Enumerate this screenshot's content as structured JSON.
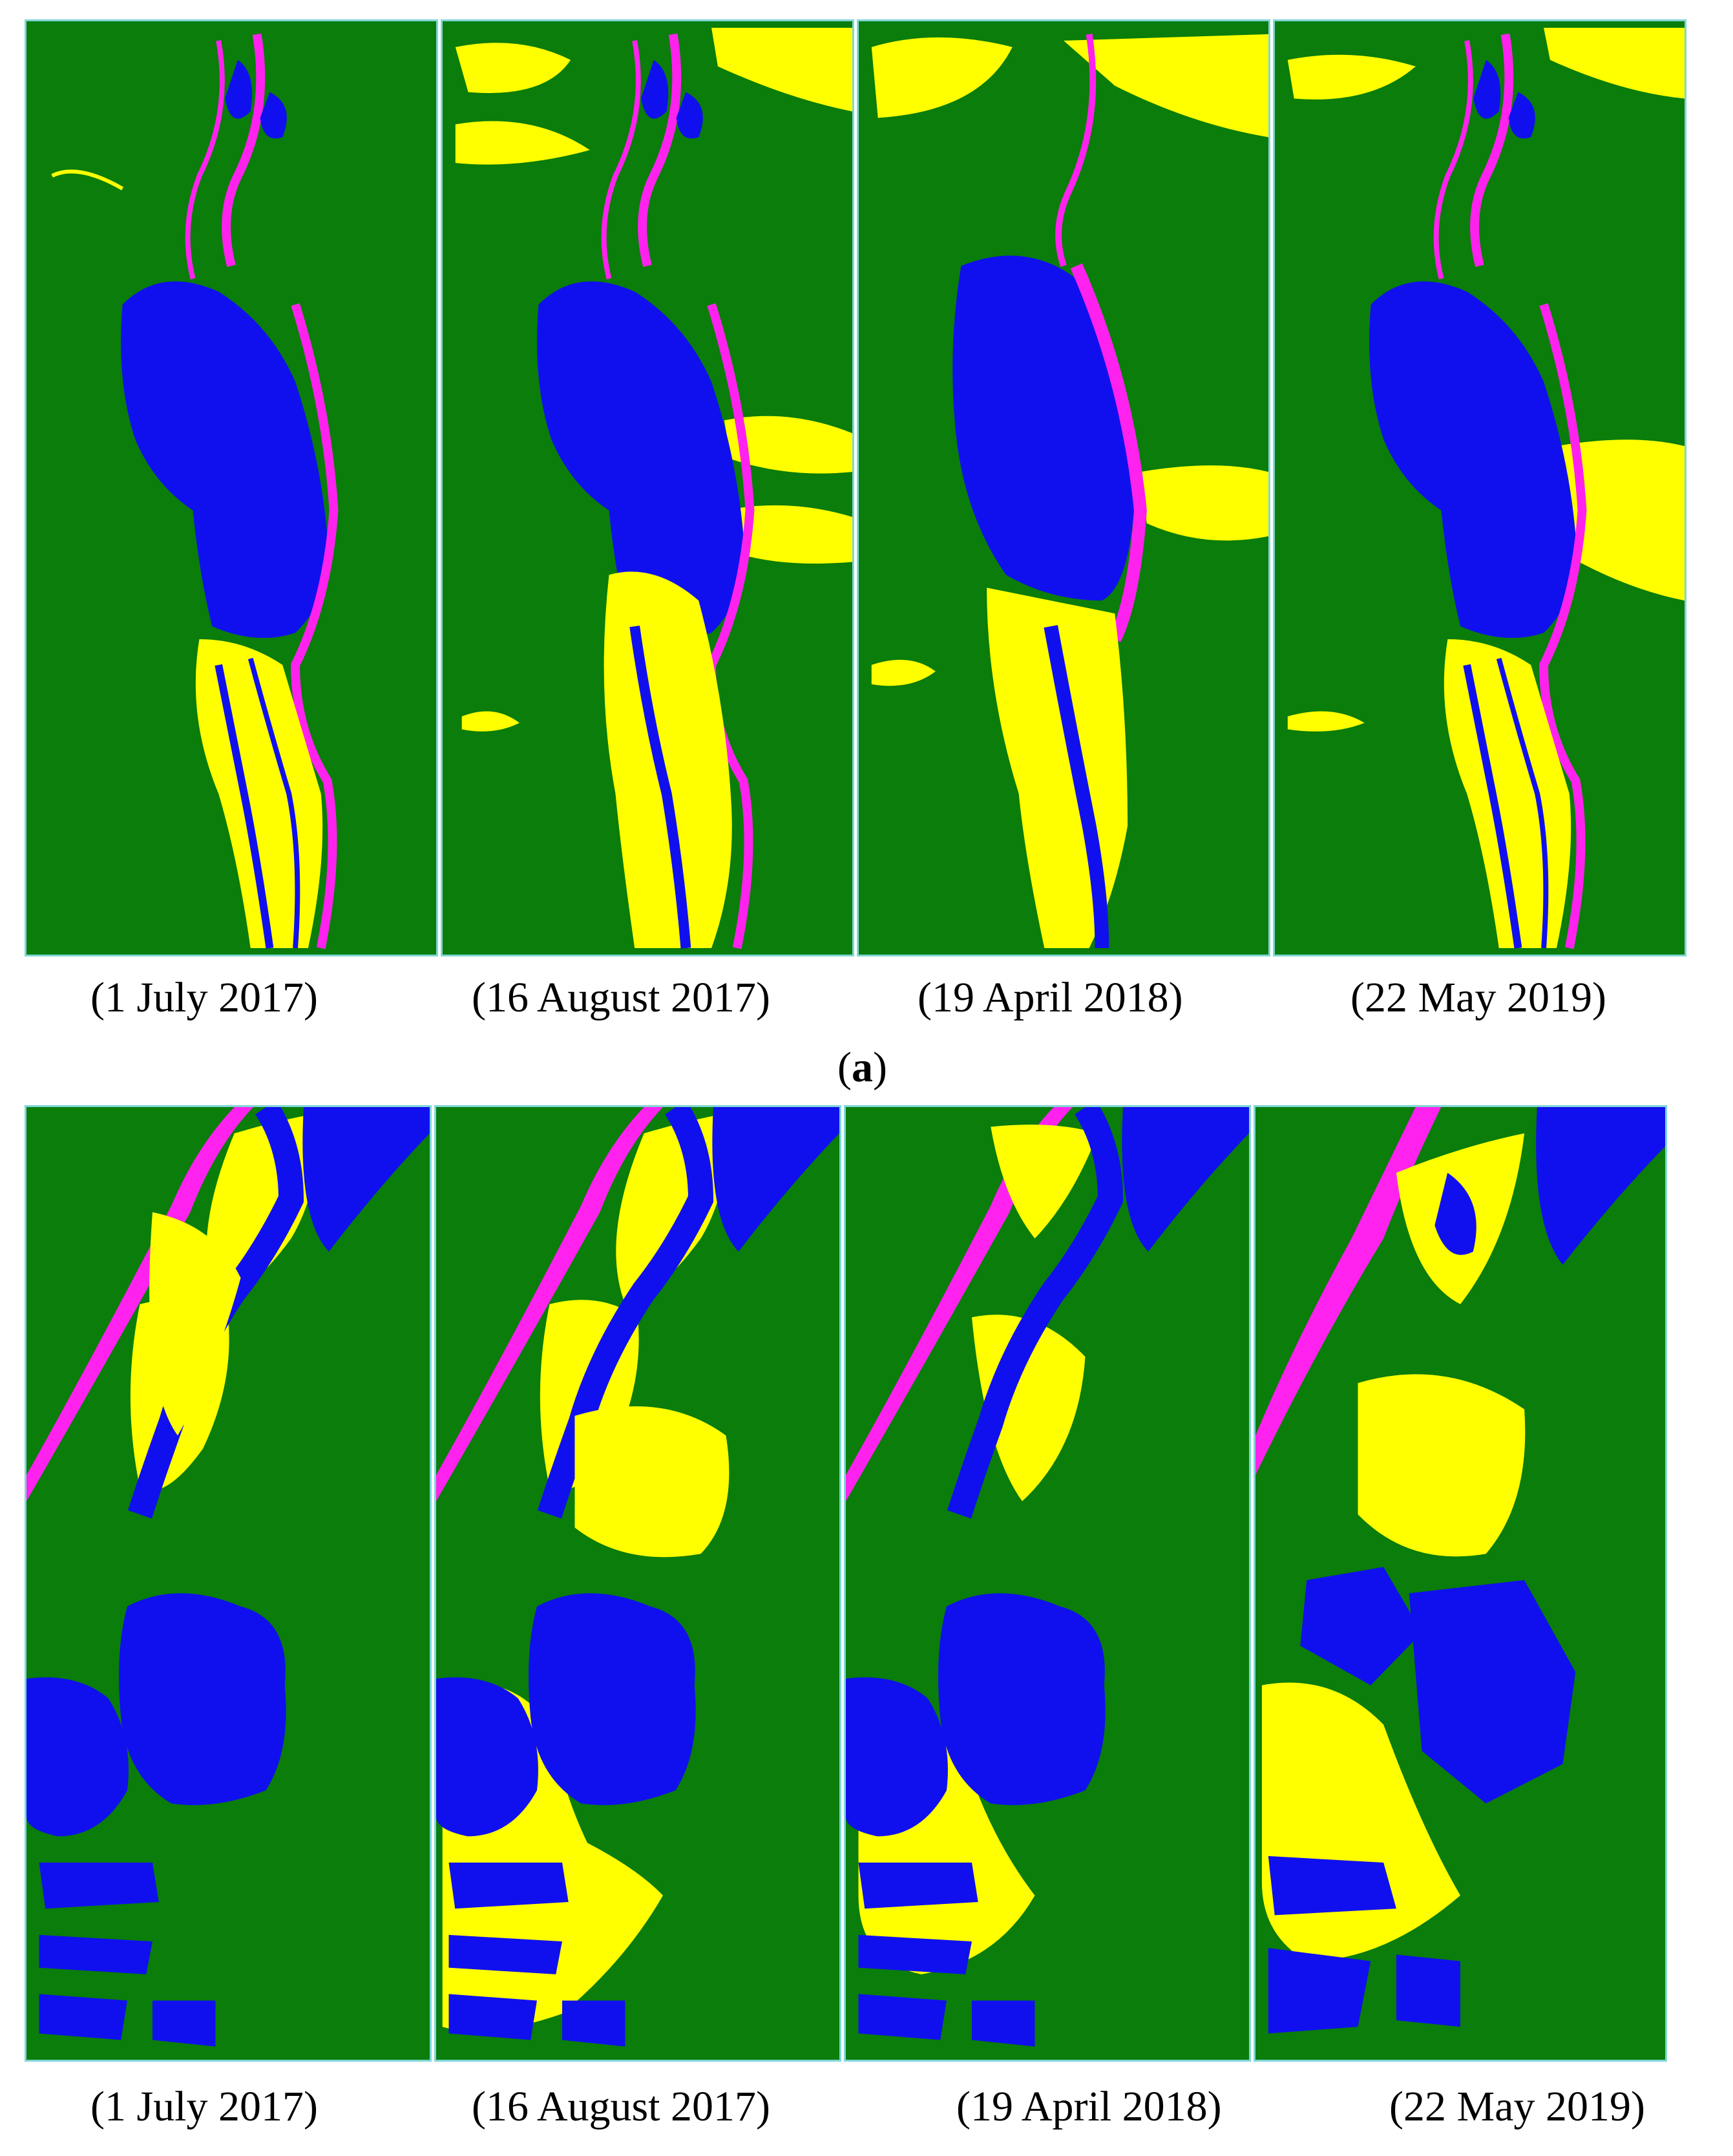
{
  "colors": {
    "background_class": "#0a7d0a",
    "water_class": "#1010ee",
    "sediment_class": "#ffff00",
    "bank_class": "#ff22ee",
    "panel_border": "#7fd6d6"
  },
  "figure_a": {
    "label": "a",
    "captions": [
      "(1 July 2017)",
      "(16 August 2017)",
      "(19 April 2018)",
      "(22 May 2019)"
    ]
  },
  "figure_b": {
    "captions": [
      "(1 July 2017)",
      "(16 August 2017)",
      "(19 April 2018)",
      "(22 May 2019)"
    ]
  }
}
